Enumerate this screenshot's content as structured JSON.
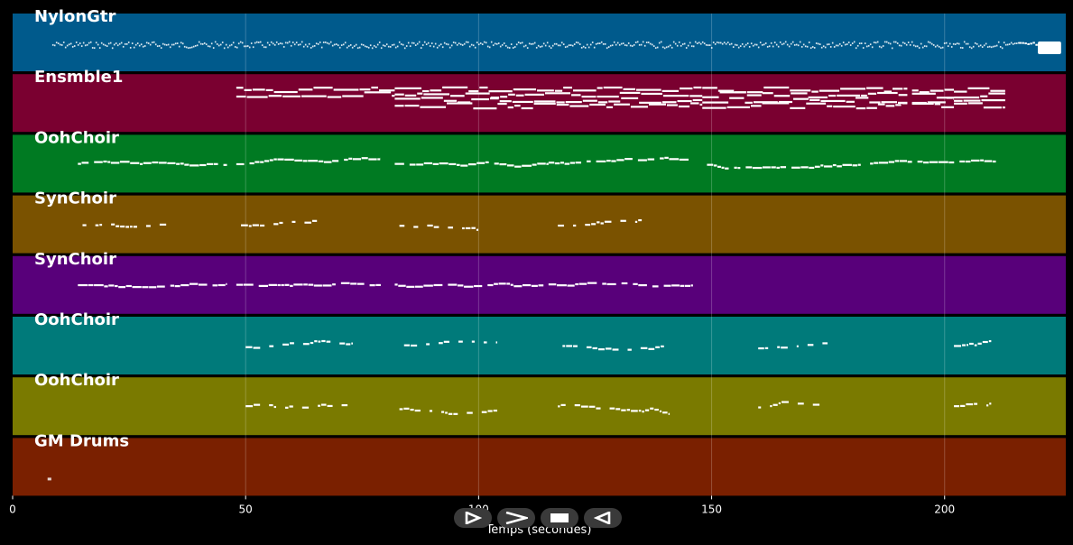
{
  "colors": {
    "background": "#000000",
    "note": "#ffffff",
    "text": "#ffffff",
    "player_button": "#3a3a3a"
  },
  "chart_data": {
    "type": "piano-roll",
    "xlabel": "Temps (secondes)",
    "xlim": [
      0,
      226
    ],
    "xticks": [
      0,
      50,
      100,
      150,
      200
    ],
    "xtick_labels": [
      "0",
      "50",
      "100",
      "150",
      "200"
    ],
    "grid": true,
    "tracks": [
      {
        "name": "NylonGtr",
        "color": "#005a8c",
        "style": "dense",
        "segments": [
          [
            8.5,
            216
          ],
          [
            216,
            220
          ],
          [
            220,
            225
          ]
        ]
      },
      {
        "name": "Ensmble1",
        "color": "#7a0030",
        "style": "chords",
        "segments": [
          [
            48,
            82
          ],
          [
            82,
            148
          ],
          [
            148,
            192
          ],
          [
            193,
            202
          ],
          [
            202,
            213
          ]
        ]
      },
      {
        "name": "OohChoir",
        "color": "#007a22",
        "style": "phrases",
        "segments": [
          [
            14,
            46
          ],
          [
            48,
            79
          ],
          [
            82,
            115
          ],
          [
            115,
            146
          ],
          [
            149,
            182
          ],
          [
            184,
            211
          ]
        ]
      },
      {
        "name": "SynChoir",
        "color": "#7a5200",
        "style": "sparse",
        "segments": [
          [
            15,
            33
          ],
          [
            49,
            67
          ],
          [
            83,
            101
          ],
          [
            117,
            135
          ]
        ]
      },
      {
        "name": "SynChoir",
        "color": "#58007a",
        "style": "phrases",
        "segments": [
          [
            14,
            46
          ],
          [
            48,
            79
          ],
          [
            82,
            115
          ],
          [
            115,
            146
          ]
        ]
      },
      {
        "name": "OohChoir",
        "color": "#007a7a",
        "style": "sparse",
        "segments": [
          [
            50,
            73
          ],
          [
            84,
            104
          ],
          [
            118,
            140
          ],
          [
            160,
            175
          ],
          [
            202,
            210
          ]
        ]
      },
      {
        "name": "OohChoir",
        "color": "#7a7a00",
        "style": "sparse",
        "segments": [
          [
            50,
            73
          ],
          [
            83,
            104
          ],
          [
            117,
            141
          ],
          [
            160,
            175
          ],
          [
            202,
            210
          ]
        ]
      },
      {
        "name": "GM Drums",
        "color": "#7a2000",
        "style": "single",
        "segments": [
          [
            7.5,
            8.3
          ]
        ]
      }
    ]
  },
  "player": {
    "buttons": [
      {
        "name": "play-button",
        "icon": "play-icon"
      },
      {
        "name": "fast-forward-button",
        "icon": "fast-forward-icon"
      },
      {
        "name": "stop-button",
        "icon": "stop-icon"
      },
      {
        "name": "rewind-button",
        "icon": "rewind-icon"
      }
    ]
  }
}
